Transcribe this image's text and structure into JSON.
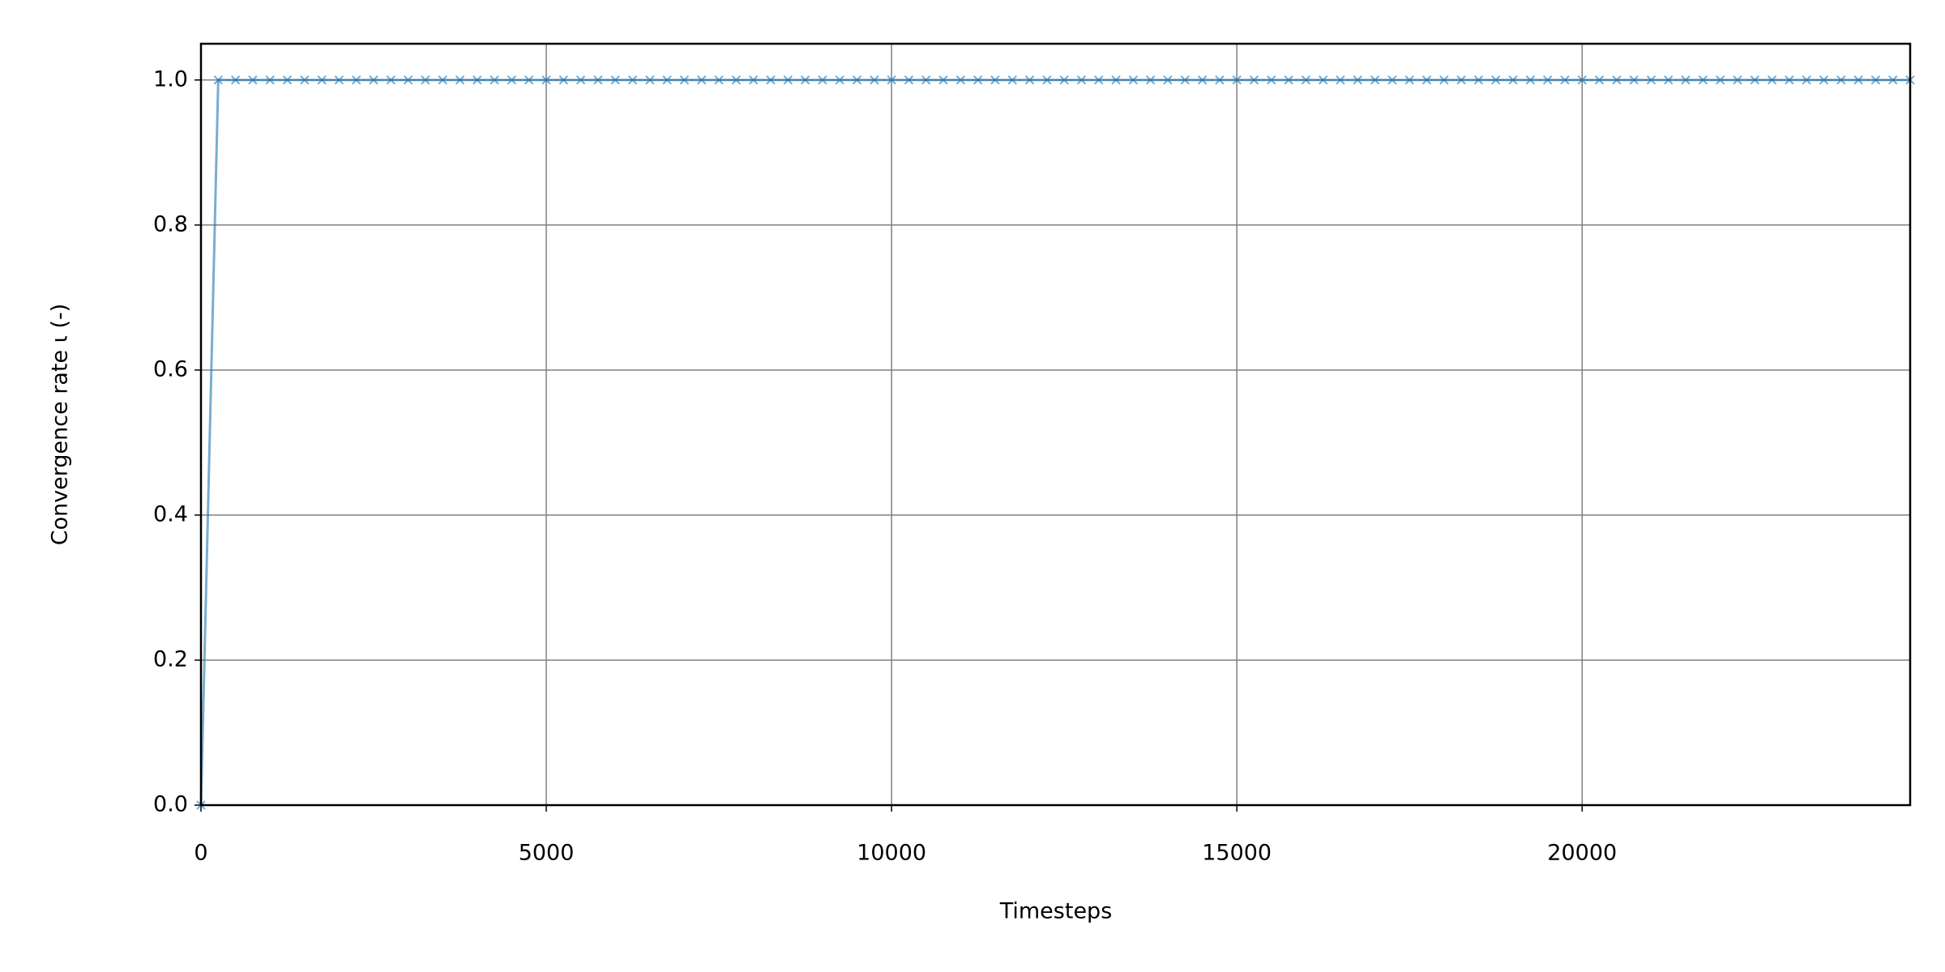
{
  "chart_data": {
    "type": "line",
    "xlabel": "Timesteps",
    "ylabel": "Convergence rate ι (-)",
    "xlim": [
      0,
      24750
    ],
    "ylim": [
      0,
      1.05
    ],
    "xticks": [
      0,
      5000,
      10000,
      15000,
      20000
    ],
    "yticks": [
      {
        "value": 0,
        "label": "0.0"
      },
      0.2,
      0.4,
      0.6,
      0.8,
      {
        "value": 1,
        "label": "1.0"
      }
    ],
    "grid": true,
    "x": [
      0,
      250,
      500,
      750,
      1000,
      1250,
      1500,
      1750,
      2000,
      2250,
      2500,
      2750,
      3000,
      3250,
      3500,
      3750,
      4000,
      4250,
      4500,
      4750,
      5000,
      5250,
      5500,
      5750,
      6000,
      6250,
      6500,
      6750,
      7000,
      7250,
      7500,
      7750,
      8000,
      8250,
      8500,
      8750,
      9000,
      9250,
      9500,
      9750,
      10000,
      10250,
      10500,
      10750,
      11000,
      11250,
      11500,
      11750,
      12000,
      12250,
      12500,
      12750,
      13000,
      13250,
      13500,
      13750,
      14000,
      14250,
      14500,
      14750,
      15000,
      15250,
      15500,
      15750,
      16000,
      16250,
      16500,
      16750,
      17000,
      17250,
      17500,
      17750,
      18000,
      18250,
      18500,
      18750,
      19000,
      19250,
      19500,
      19750,
      20000,
      20250,
      20500,
      20750,
      21000,
      21250,
      21500,
      21750,
      22000,
      22250,
      22500,
      22750,
      23000,
      23250,
      23500,
      23750,
      24000,
      24250,
      24500,
      24750
    ],
    "series": [
      {
        "color": "#1f77b4",
        "values": [
          0,
          1,
          1,
          1,
          1,
          1,
          1,
          1,
          1,
          1,
          1,
          1,
          1,
          1,
          1,
          1,
          1,
          1,
          1,
          1,
          1,
          1,
          1,
          1,
          1,
          1,
          1,
          1,
          1,
          1,
          1,
          1,
          1,
          1,
          1,
          1,
          1,
          1,
          1,
          1,
          1,
          1,
          1,
          1,
          1,
          1,
          1,
          1,
          1,
          1,
          1,
          1,
          1,
          1,
          1,
          1,
          1,
          1,
          1,
          1,
          1,
          1,
          1,
          1,
          1,
          1,
          1,
          1,
          1,
          1,
          1,
          1,
          1,
          1,
          1,
          1,
          1,
          1,
          1,
          1,
          1,
          1,
          1,
          1,
          1,
          1,
          1,
          1,
          1,
          1,
          1,
          1,
          1,
          1,
          1,
          1,
          1,
          1,
          1,
          1
        ]
      }
    ]
  }
}
